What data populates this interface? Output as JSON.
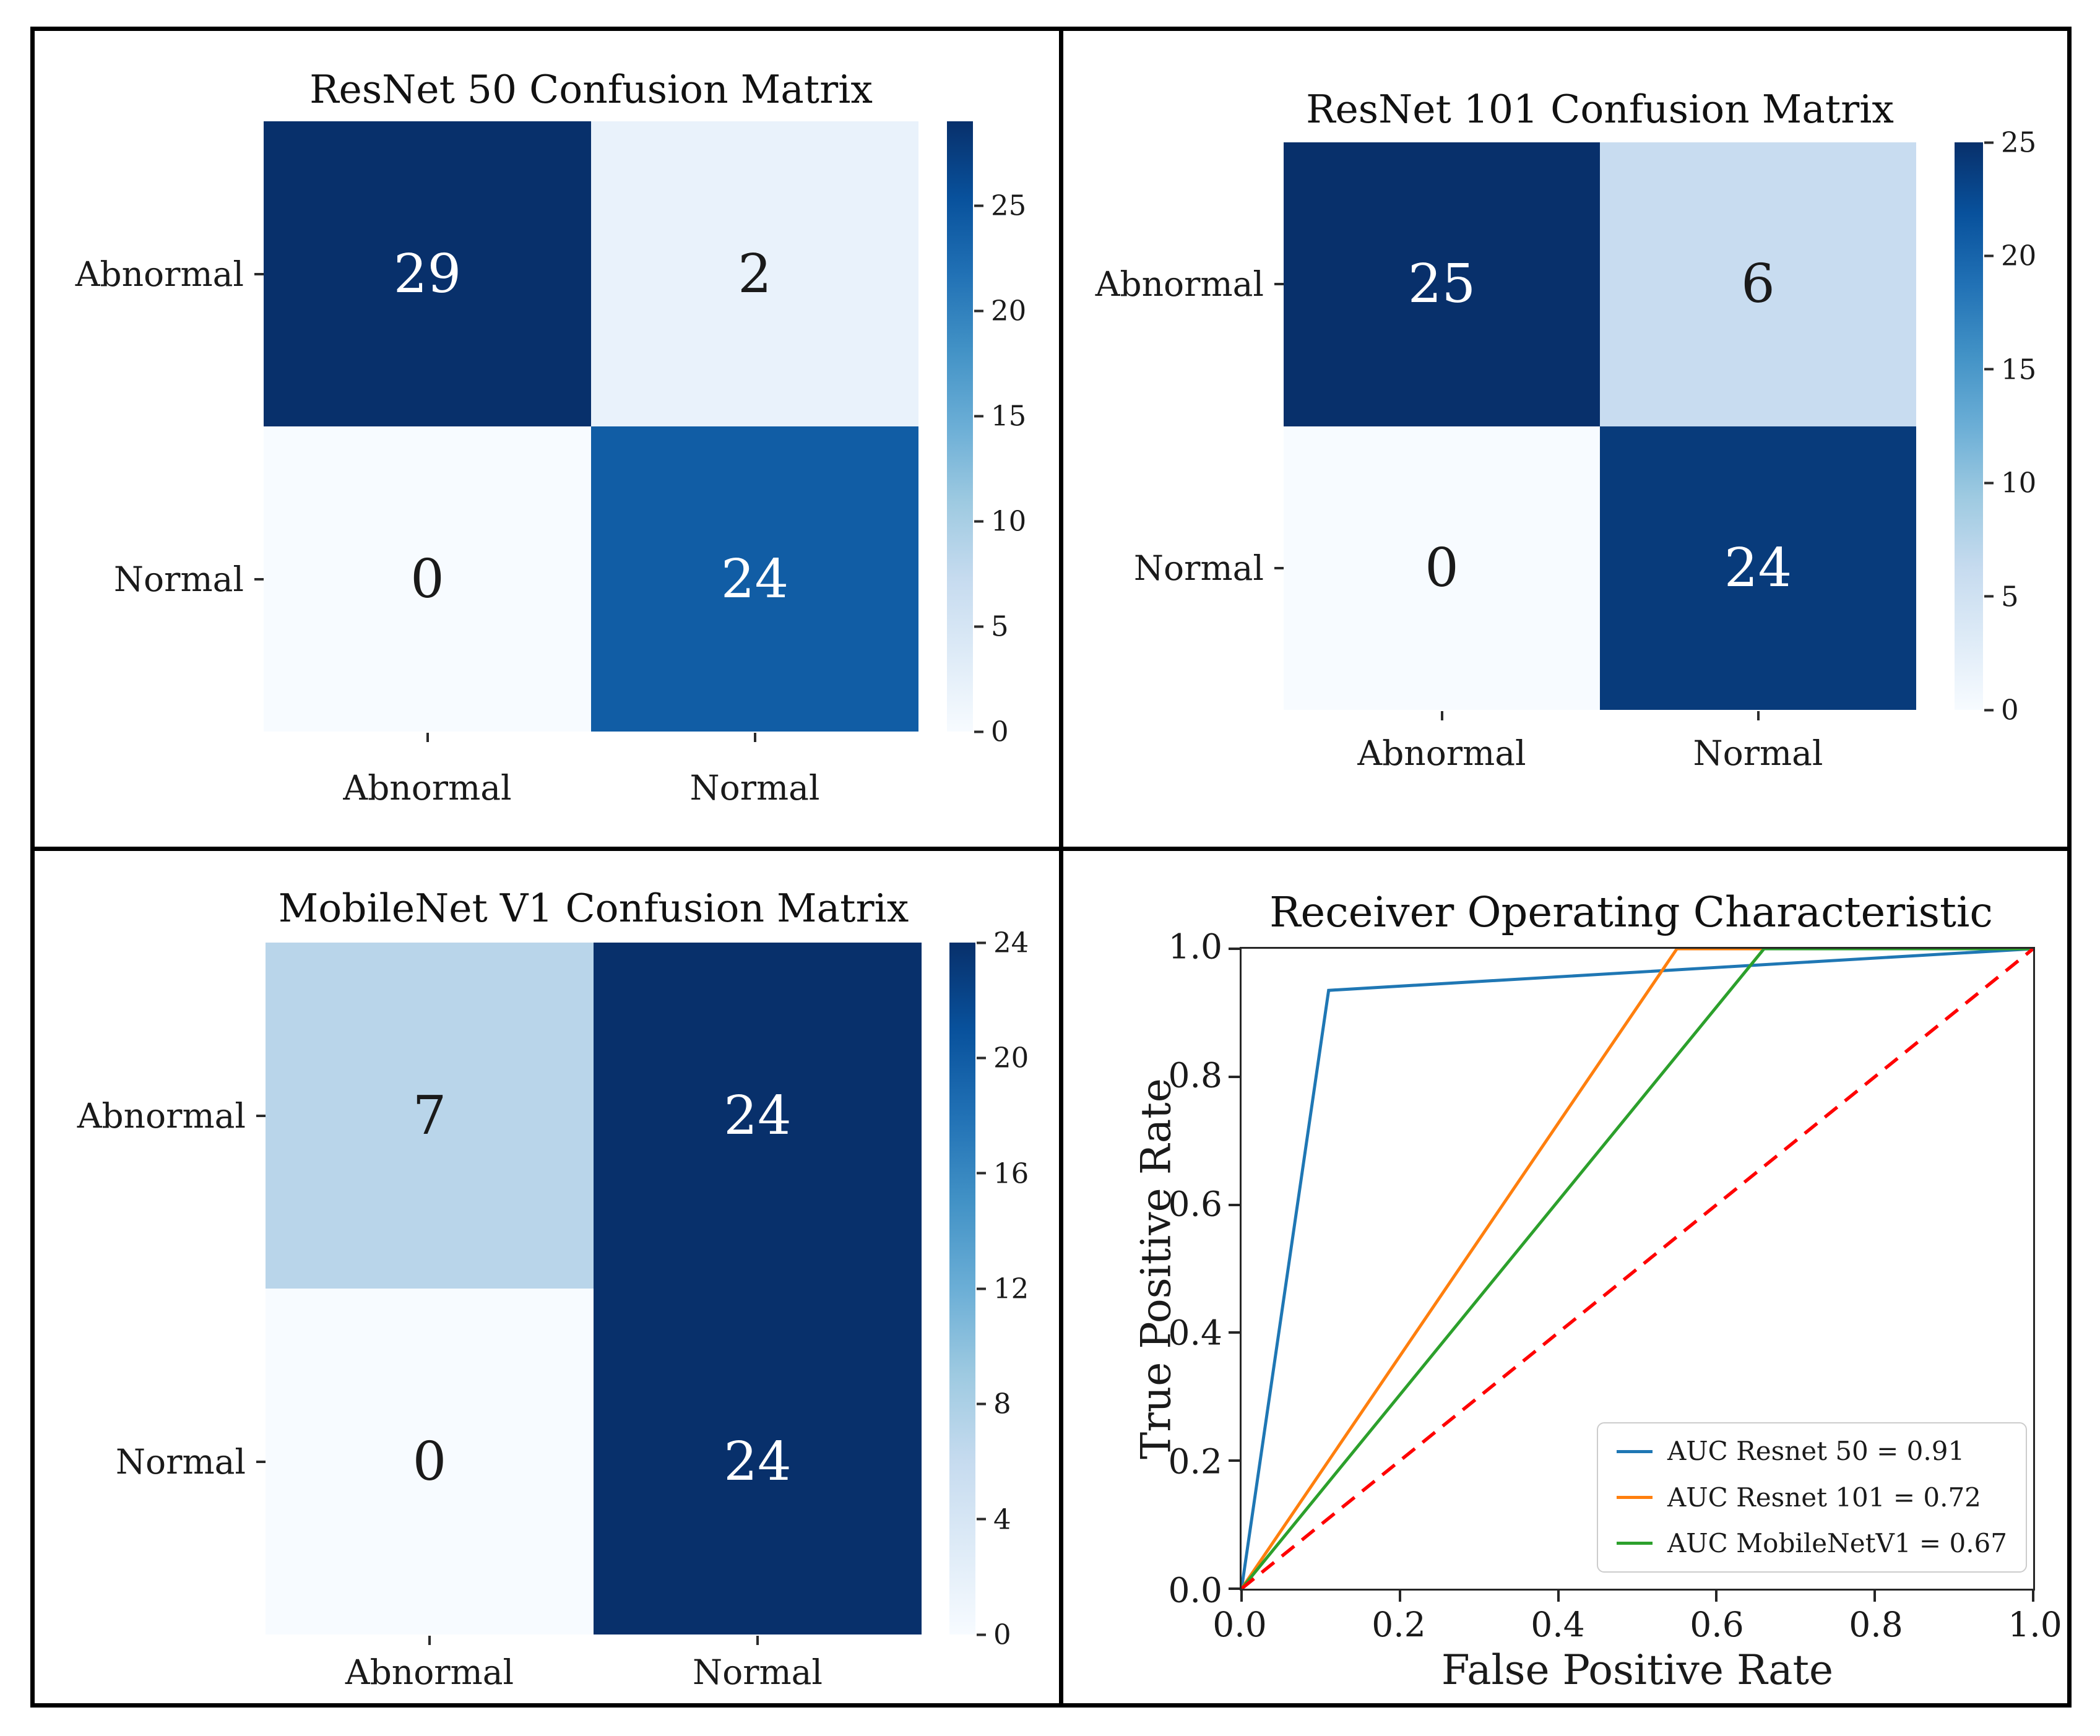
{
  "document": {
    "background": "#ffffff",
    "table_border_color": "#000000"
  },
  "colors": {
    "blues_colormap": [
      "#f7fbff",
      "#deebf7",
      "#c6dbef",
      "#9ecae1",
      "#6baed6",
      "#4292c6",
      "#2171b5",
      "#08519c",
      "#08306b"
    ],
    "heatmap_text_light": "#ffffff",
    "heatmap_text_dark": "#1a1a1a",
    "axis_text": "#1a1a1a",
    "roc_reference_red": "#ff0000"
  },
  "chart_data": [
    {
      "type": "heatmap",
      "title": "ResNet 50 Confusion Matrix",
      "row_labels": [
        "Abnormal",
        "Normal"
      ],
      "col_labels": [
        "Abnormal",
        "Normal"
      ],
      "values": [
        [
          29,
          2
        ],
        [
          0,
          24
        ]
      ],
      "vmin": 0,
      "vmax": 29,
      "colormap": "Blues",
      "colorbar_ticks": [
        0,
        5,
        10,
        15,
        20,
        25
      ]
    },
    {
      "type": "heatmap",
      "title": "ResNet 101 Confusion Matrix",
      "row_labels": [
        "Abnormal",
        "Normal"
      ],
      "col_labels": [
        "Abnormal",
        "Normal"
      ],
      "values": [
        [
          25,
          6
        ],
        [
          0,
          24
        ]
      ],
      "vmin": 0,
      "vmax": 25,
      "colormap": "Blues",
      "colorbar_ticks": [
        0,
        5,
        10,
        15,
        20,
        25
      ]
    },
    {
      "type": "heatmap",
      "title": "MobileNet V1 Confusion Matrix",
      "row_labels": [
        "Abnormal",
        "Normal"
      ],
      "col_labels": [
        "Abnormal",
        "Normal"
      ],
      "values": [
        [
          7,
          24
        ],
        [
          0,
          24
        ]
      ],
      "vmin": 0,
      "vmax": 24,
      "colormap": "Blues",
      "colorbar_ticks": [
        0,
        4,
        8,
        12,
        16,
        20,
        24
      ]
    },
    {
      "type": "line",
      "title": "Receiver Operating Characteristic",
      "xlabel": "False Positive Rate",
      "ylabel": "True Positive Rate",
      "xlim": [
        0,
        1
      ],
      "ylim": [
        0,
        1
      ],
      "x_ticks": [
        "0.0",
        "0.2",
        "0.4",
        "0.6",
        "0.8",
        "1.0"
      ],
      "y_ticks": [
        "0.0",
        "0.2",
        "0.4",
        "0.6",
        "0.8",
        "1.0"
      ],
      "grid": false,
      "legend_position": "lower right",
      "series": [
        {
          "name": "AUC Resnet 50 = 0.91",
          "color": "#1f77b4",
          "auc": 0.91,
          "points": [
            [
              0,
              0
            ],
            [
              0.11,
              0.935
            ],
            [
              1,
              1
            ]
          ]
        },
        {
          "name": "AUC Resnet 101 = 0.72",
          "color": "#ff7f0e",
          "auc": 0.72,
          "points": [
            [
              0,
              0
            ],
            [
              0.55,
              1
            ],
            [
              1,
              1
            ]
          ]
        },
        {
          "name": "AUC MobileNetV1 = 0.67",
          "color": "#2ca02c",
          "auc": 0.67,
          "points": [
            [
              0,
              0
            ],
            [
              0.66,
              1
            ],
            [
              1,
              1
            ]
          ]
        }
      ],
      "reference_line": {
        "name": "chance-diagonal",
        "color": "#ff0000",
        "style": "dashed",
        "points": [
          [
            0,
            0
          ],
          [
            1,
            1
          ]
        ]
      }
    }
  ]
}
